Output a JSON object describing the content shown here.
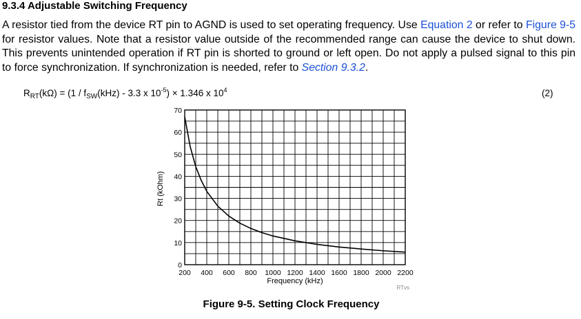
{
  "section": {
    "heading": "9.3.4 Adjustable Switching Frequency"
  },
  "paragraph": {
    "part1": "A resistor tied from the device RT pin to AGND is used to set operating frequency. Use ",
    "link_equation": "Equation 2",
    "part2": " or refer to ",
    "link_figure": "Figure 9-5",
    "part3": " for resistor values. Note that a resistor value outside of the recommended range can cause the device to shut down. This prevents unintended operation if RT pin is shorted to ground or left open. Do not apply a pulsed signal to this pin to force synchronization. If synchronization is needed, refer to ",
    "link_section": "Section 9.3.2",
    "part4": "."
  },
  "equation": {
    "lhs_main": "R",
    "lhs_sub": "RT",
    "lhs_unit": "(kΩ) = (1 / f",
    "fsw_sub": "SW",
    "mid": "(kHz) - 3.3 x 10",
    "exp1": "-5",
    "mid2": ") × 1.346 x 10",
    "exp2": "4",
    "number": "(2)"
  },
  "figure": {
    "caption": "Figure 9-5. Setting Clock Frequency"
  },
  "chart_data": {
    "type": "line",
    "xlabel": "Frequency (kHz)",
    "ylabel": "Rt (kOhm)",
    "xlim": [
      200,
      2200
    ],
    "ylim": [
      0,
      70
    ],
    "x_ticks": [
      200,
      400,
      600,
      800,
      1000,
      1200,
      1400,
      1600,
      1800,
      2000,
      2200
    ],
    "y_ticks": [
      0,
      10,
      20,
      30,
      40,
      50,
      60,
      70
    ],
    "grid": true,
    "watermark": "RTvs",
    "series": [
      {
        "x": [
          200,
          250,
          300,
          350,
          400,
          500,
          600,
          700,
          800,
          900,
          1000,
          1200,
          1400,
          1600,
          1800,
          2000,
          2200
        ],
        "values": [
          66.9,
          53.4,
          44.4,
          38.1,
          33.2,
          26.5,
          22.0,
          18.8,
          16.4,
          14.5,
          13.0,
          10.8,
          9.2,
          8.0,
          7.1,
          6.3,
          5.7
        ]
      }
    ]
  }
}
